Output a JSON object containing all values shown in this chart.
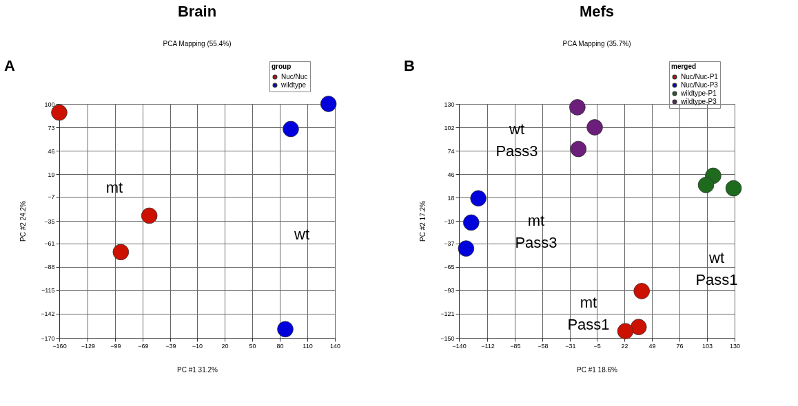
{
  "chart_data": [
    {
      "type": "scatter",
      "title": "Brain",
      "subtitle": "PCA Mapping (55.4%)",
      "xlabel": "PC #1 31.2%",
      "ylabel": "PC #2 24.2%",
      "legend_title": "group",
      "series": [
        {
          "name": "Nuc/Nuc",
          "color": "#cc1100",
          "x": [
            -160,
            -62,
            -93
          ],
          "values": [
            90,
            -29,
            -71
          ]
        },
        {
          "name": "wildtype",
          "color": "#0000dd",
          "x": [
            133,
            92,
            86
          ],
          "values": [
            100,
            71,
            -160
          ]
        }
      ],
      "xlim": [
        -160,
        140
      ],
      "xticks": [
        -160,
        -129,
        -99,
        -69,
        -39,
        -10,
        20,
        50,
        80,
        110,
        140
      ],
      "ylim": [
        -170,
        100
      ],
      "yticks": [
        -170,
        -142,
        -115,
        -88,
        -61,
        -35,
        -7,
        19,
        46,
        73,
        100
      ],
      "grid": true,
      "legend": "top right",
      "marker": "circle",
      "annotations": [
        "A",
        "mt",
        "wt"
      ]
    },
    {
      "type": "scatter",
      "title": "Mefs",
      "subtitle": "PCA Mapping (35.7%)",
      "xlabel": "PC #1 18.6%",
      "ylabel": "PC #2 17.2%",
      "legend_title": "merged",
      "series": [
        {
          "name": "Nuc/Nuc-P1",
          "color": "#cc1100",
          "x": [
            39,
            36,
            23
          ],
          "values": [
            -94,
            -137,
            -142
          ]
        },
        {
          "name": "Nuc/Nuc-P3",
          "color": "#0000dd",
          "x": [
            -121,
            -128,
            -133
          ],
          "values": [
            17,
            -12,
            -43
          ]
        },
        {
          "name": "wildtype-P1",
          "color": "#1e6b1e",
          "x": [
            109,
            102,
            129
          ],
          "values": [
            44,
            33,
            29
          ]
        },
        {
          "name": "wildtype-P3",
          "color": "#6b1f7a",
          "x": [
            -24,
            -7,
            -23
          ],
          "values": [
            126,
            102,
            76
          ]
        }
      ],
      "xlim": [
        -140,
        130
      ],
      "xticks": [
        -140,
        -112,
        -85,
        -58,
        -31,
        -5,
        22,
        49,
        76,
        103,
        130
      ],
      "ylim": [
        -150,
        130
      ],
      "yticks": [
        -150,
        -121,
        -93,
        -65,
        -37,
        -10,
        18,
        46,
        74,
        102,
        130
      ],
      "grid": true,
      "legend": "top right",
      "marker": "circle",
      "annotations": [
        "B",
        "wt\nPass3",
        "mt\nPass3",
        "mt\nPass1",
        "wt\nPass1"
      ]
    }
  ]
}
